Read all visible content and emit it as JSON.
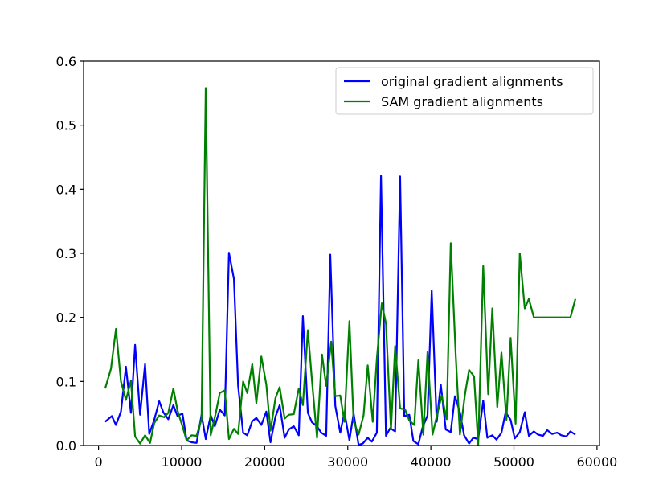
{
  "chart_data": {
    "type": "line",
    "title": "",
    "xlabel": "",
    "ylabel": "",
    "xlim": [
      -1800,
      60300
    ],
    "ylim": [
      0,
      0.6
    ],
    "x_ticks": [
      0,
      10000,
      20000,
      30000,
      40000,
      50000,
      60000
    ],
    "x_tick_labels": [
      "0",
      "10000",
      "20000",
      "30000",
      "40000",
      "50000",
      "60000"
    ],
    "y_ticks": [
      0.0,
      0.1,
      0.2,
      0.3,
      0.4,
      0.5,
      0.6
    ],
    "y_tick_labels": [
      "0.0",
      "0.1",
      "0.2",
      "0.3",
      "0.4",
      "0.5",
      "0.6"
    ],
    "grid": false,
    "legend_position": "top-right",
    "series": [
      {
        "name": "original gradient alignments",
        "color": "#0000ff",
        "x": [
          800,
          1600,
          2100,
          2700,
          3300,
          3900,
          4400,
          5000,
          5600,
          6100,
          6700,
          7300,
          7800,
          8400,
          9000,
          9500,
          10100,
          10600,
          11200,
          11800,
          12400,
          12900,
          13500,
          14000,
          14600,
          15200,
          15700,
          16300,
          16800,
          17400,
          17900,
          18500,
          19000,
          19600,
          20200,
          20700,
          21300,
          21800,
          22400,
          22900,
          23500,
          24100,
          24600,
          25200,
          25700,
          26300,
          26800,
          27400,
          27900,
          28500,
          29100,
          29600,
          30200,
          30700,
          31300,
          31800,
          32400,
          32900,
          33500,
          34000,
          34600,
          35100,
          35700,
          36300,
          36800,
          37400,
          37900,
          38500,
          39000,
          39600,
          40100,
          40700,
          41200,
          41800,
          42400,
          42900,
          43500,
          44000,
          44600,
          45100,
          45700,
          46300,
          46800,
          47400,
          47900,
          48500,
          49000,
          49600,
          50100,
          50700,
          51300,
          51800,
          52400,
          52900,
          53500,
          54000,
          54600,
          55200,
          55700,
          56300,
          56800,
          57400
        ],
        "y": [
          0.037,
          0.046,
          0.032,
          0.053,
          0.123,
          0.051,
          0.157,
          0.048,
          0.127,
          0.018,
          0.04,
          0.069,
          0.052,
          0.041,
          0.063,
          0.046,
          0.05,
          0.008,
          0.005,
          0.004,
          0.048,
          0.01,
          0.047,
          0.03,
          0.056,
          0.047,
          0.301,
          0.26,
          0.093,
          0.02,
          0.016,
          0.038,
          0.043,
          0.032,
          0.053,
          0.005,
          0.045,
          0.063,
          0.012,
          0.025,
          0.03,
          0.016,
          0.202,
          0.051,
          0.036,
          0.03,
          0.02,
          0.015,
          0.298,
          0.062,
          0.02,
          0.052,
          0.008,
          0.05,
          0.001,
          0.003,
          0.012,
          0.006,
          0.02,
          0.421,
          0.015,
          0.027,
          0.022,
          0.42,
          0.046,
          0.048,
          0.007,
          0.002,
          0.028,
          0.047,
          0.242,
          0.037,
          0.095,
          0.025,
          0.021,
          0.077,
          0.052,
          0.016,
          0.003,
          0.012,
          0.01,
          0.07,
          0.012,
          0.016,
          0.009,
          0.02,
          0.052,
          0.04,
          0.011,
          0.021,
          0.052,
          0.015,
          0.022,
          0.017,
          0.015,
          0.024,
          0.018,
          0.02,
          0.016,
          0.014,
          0.022,
          0.017
        ]
      },
      {
        "name": "SAM gradient alignments",
        "color": "#008000",
        "x": [
          800,
          1500,
          2100,
          2700,
          3300,
          3900,
          4400,
          5000,
          5600,
          6200,
          6700,
          7300,
          7900,
          8400,
          9000,
          9500,
          10100,
          10600,
          11200,
          11800,
          12400,
          12900,
          13500,
          14100,
          14600,
          15200,
          15700,
          16300,
          16800,
          17400,
          17900,
          18500,
          19000,
          19600,
          20200,
          20700,
          21300,
          21800,
          22400,
          22900,
          23500,
          24100,
          24600,
          25200,
          25700,
          26300,
          26900,
          27400,
          28000,
          28500,
          29100,
          29600,
          30200,
          30700,
          31300,
          31900,
          32400,
          33000,
          33500,
          34100,
          34600,
          35200,
          35700,
          36300,
          36900,
          37400,
          38000,
          38500,
          39100,
          39600,
          40200,
          40700,
          41300,
          41900,
          42400,
          43000,
          43500,
          44100,
          44600,
          45200,
          45700,
          46300,
          46900,
          47400,
          48000,
          48500,
          49100,
          49600,
          50200,
          50700,
          51300,
          51800,
          52400,
          52900,
          53500,
          54000,
          54600,
          55200,
          55700,
          56300,
          56800,
          57400
        ],
        "y": [
          0.089,
          0.12,
          0.182,
          0.1,
          0.071,
          0.101,
          0.014,
          0.003,
          0.016,
          0.004,
          0.035,
          0.047,
          0.044,
          0.051,
          0.089,
          0.055,
          0.03,
          0.008,
          0.016,
          0.015,
          0.041,
          0.558,
          0.016,
          0.05,
          0.082,
          0.086,
          0.01,
          0.026,
          0.018,
          0.1,
          0.082,
          0.127,
          0.066,
          0.139,
          0.095,
          0.023,
          0.074,
          0.091,
          0.042,
          0.048,
          0.049,
          0.089,
          0.063,
          0.18,
          0.1,
          0.012,
          0.142,
          0.093,
          0.162,
          0.077,
          0.078,
          0.037,
          0.194,
          0.038,
          0.017,
          0.047,
          0.125,
          0.037,
          0.135,
          0.222,
          0.19,
          0.025,
          0.155,
          0.058,
          0.056,
          0.039,
          0.032,
          0.133,
          0.017,
          0.146,
          0.017,
          0.045,
          0.078,
          0.041,
          0.316,
          0.141,
          0.017,
          0.079,
          0.118,
          0.108,
          0.001,
          0.28,
          0.08,
          0.214,
          0.06,
          0.145,
          0.04,
          0.168,
          0.034,
          0.3,
          0.214,
          0.229,
          0.2,
          0.2,
          0.2,
          0.2,
          0.2,
          0.2,
          0.2,
          0.2,
          0.2,
          0.229
        ]
      }
    ]
  }
}
